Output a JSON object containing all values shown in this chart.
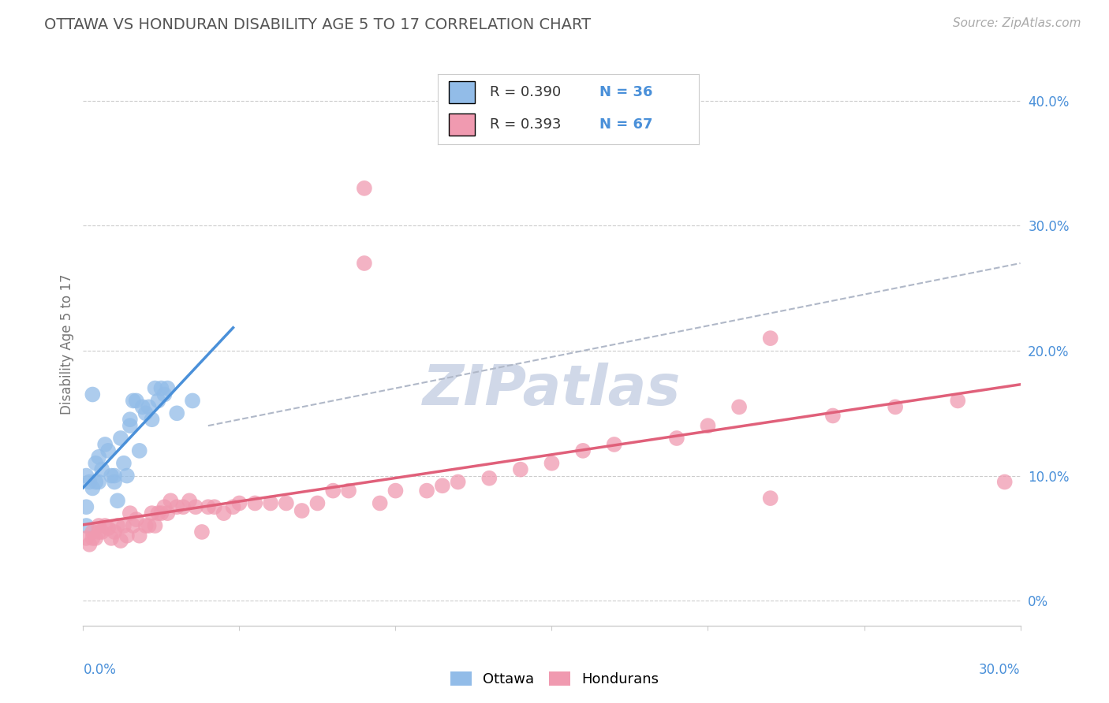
{
  "title": "OTTAWA VS HONDURAN DISABILITY AGE 5 TO 17 CORRELATION CHART",
  "source_text": "Source: ZipAtlas.com",
  "ylabel": "Disability Age 5 to 17",
  "ylabel_right_ticks": [
    "40.0%",
    "30.0%",
    "20.0%",
    "10.0%",
    "0%"
  ],
  "ylabel_right_vals": [
    0.4,
    0.3,
    0.2,
    0.1,
    0.0
  ],
  "xmin": 0.0,
  "xmax": 0.3,
  "ymin": -0.02,
  "ymax": 0.43,
  "ottawa_color": "#92bce8",
  "honduran_color": "#f09ab0",
  "background_color": "#ffffff",
  "grid_color": "#cccccc",
  "title_color": "#666666",
  "axis_label_color": "#4a90d9",
  "trend_ottawa_color": "#4a90d9",
  "trend_honduran_color": "#e0607a",
  "trend_dashed_color": "#b0b8c8",
  "watermark": "ZIPatlas",
  "watermark_color": "#d0d8e8",
  "legend_text_color": "#4a90d9",
  "legend_r_color": "#333333"
}
